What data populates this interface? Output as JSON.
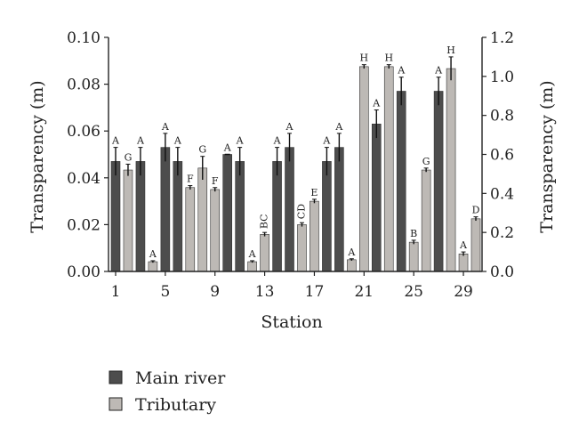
{
  "chart_data": {
    "type": "bar",
    "xlabel": "Station",
    "ylabel_left": "Transparency (m)",
    "ylabel_right": "Transparency (m)",
    "ylim_left": [
      0,
      0.1
    ],
    "ylim_right": [
      0,
      1.2
    ],
    "left_ticks": [
      "0.00",
      "0.02",
      "0.04",
      "0.06",
      "0.08",
      "0.10"
    ],
    "right_ticks": [
      "0.0",
      "0.2",
      "0.4",
      "0.6",
      "0.8",
      "1.0",
      "1.2"
    ],
    "x_ticks": [
      "1",
      "5",
      "9",
      "13",
      "17",
      "21",
      "25",
      "29"
    ],
    "legend_position": "bottom-left",
    "grid": false,
    "series": [
      {
        "name": "Main river",
        "color": "#4d4d4d",
        "axis": "left"
      },
      {
        "name": "Tributary",
        "color": "#bdb9b5",
        "axis": "right"
      }
    ],
    "bars": [
      {
        "station": 1,
        "series": "Main river",
        "value": 0.047,
        "error": 0.006,
        "letter": "A"
      },
      {
        "station": 2,
        "series": "Tributary",
        "value": 0.52,
        "error": 0.03,
        "letter": "G"
      },
      {
        "station": 3,
        "series": "Main river",
        "value": 0.047,
        "error": 0.006,
        "letter": "A"
      },
      {
        "station": 4,
        "series": "Tributary",
        "value": 0.05,
        "error": 0.005,
        "letter": "A"
      },
      {
        "station": 5,
        "series": "Main river",
        "value": 0.053,
        "error": 0.006,
        "letter": "A"
      },
      {
        "station": 6,
        "series": "Main river",
        "value": 0.047,
        "error": 0.006,
        "letter": "A"
      },
      {
        "station": 7,
        "series": "Tributary",
        "value": 0.43,
        "error": 0.01,
        "letter": "F"
      },
      {
        "station": 8,
        "series": "Tributary",
        "value": 0.53,
        "error": 0.06,
        "letter": "G"
      },
      {
        "station": 9,
        "series": "Tributary",
        "value": 0.42,
        "error": 0.01,
        "letter": "F"
      },
      {
        "station": 10,
        "series": "Main river",
        "value": 0.05,
        "error": 0.0,
        "letter": "A"
      },
      {
        "station": 11,
        "series": "Main river",
        "value": 0.047,
        "error": 0.006,
        "letter": "A"
      },
      {
        "station": 12,
        "series": "Tributary",
        "value": 0.05,
        "error": 0.005,
        "letter": "A"
      },
      {
        "station": 13,
        "series": "Tributary",
        "value": 0.19,
        "error": 0.01,
        "letter": "BC"
      },
      {
        "station": 14,
        "series": "Main river",
        "value": 0.047,
        "error": 0.006,
        "letter": "A"
      },
      {
        "station": 15,
        "series": "Main river",
        "value": 0.053,
        "error": 0.006,
        "letter": "A"
      },
      {
        "station": 16,
        "series": "Tributary",
        "value": 0.24,
        "error": 0.01,
        "letter": "CD"
      },
      {
        "station": 17,
        "series": "Tributary",
        "value": 0.36,
        "error": 0.01,
        "letter": "E"
      },
      {
        "station": 18,
        "series": "Main river",
        "value": 0.047,
        "error": 0.006,
        "letter": "A"
      },
      {
        "station": 19,
        "series": "Main river",
        "value": 0.053,
        "error": 0.006,
        "letter": "A"
      },
      {
        "station": 20,
        "series": "Tributary",
        "value": 0.06,
        "error": 0.005,
        "letter": "A"
      },
      {
        "station": 21,
        "series": "Tributary",
        "value": 1.05,
        "error": 0.01,
        "letter": "H"
      },
      {
        "station": 22,
        "series": "Main river",
        "value": 0.063,
        "error": 0.006,
        "letter": "A"
      },
      {
        "station": 23,
        "series": "Tributary",
        "value": 1.05,
        "error": 0.01,
        "letter": "H"
      },
      {
        "station": 24,
        "series": "Main river",
        "value": 0.077,
        "error": 0.006,
        "letter": "A"
      },
      {
        "station": 25,
        "series": "Tributary",
        "value": 0.15,
        "error": 0.01,
        "letter": "B"
      },
      {
        "station": 26,
        "series": "Tributary",
        "value": 0.52,
        "error": 0.01,
        "letter": "G"
      },
      {
        "station": 27,
        "series": "Main river",
        "value": 0.077,
        "error": 0.006,
        "letter": "A"
      },
      {
        "station": 28,
        "series": "Tributary",
        "value": 1.04,
        "error": 0.06,
        "letter": "H"
      },
      {
        "station": 29,
        "series": "Tributary",
        "value": 0.09,
        "error": 0.01,
        "letter": "A"
      },
      {
        "station": 30,
        "series": "Tributary",
        "value": 0.27,
        "error": 0.01,
        "letter": "D"
      }
    ]
  }
}
